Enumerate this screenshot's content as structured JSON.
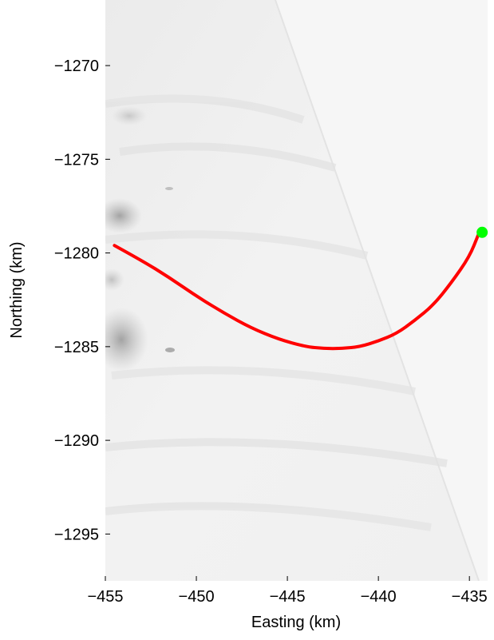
{
  "chart_data": {
    "type": "line",
    "xlabel": "Easting (km)",
    "ylabel": "Northing (km)",
    "xlim": [
      -455.0,
      -434.0
    ],
    "ylim": [
      -1297.5,
      -1266.5
    ],
    "xticks": [
      -455,
      -450,
      -445,
      -440,
      -435
    ],
    "xtick_labels": [
      "−455",
      "−450",
      "−445",
      "−440",
      "−435"
    ],
    "yticks": [
      -1270,
      -1275,
      -1280,
      -1285,
      -1290,
      -1295
    ],
    "ytick_labels": [
      "−1270",
      "−1275",
      "−1280",
      "−1285",
      "−1290",
      "−1295"
    ],
    "grid": false,
    "background": "grayscale satellite imagery of ice surface",
    "series": [
      {
        "color": "#ff0000",
        "x": [
          -454.5,
          -453.0,
          -451.5,
          -450.0,
          -448.5,
          -447.0,
          -445.5,
          -444.0,
          -443.0,
          -442.0,
          -441.0,
          -440.0,
          -439.0,
          -438.0,
          -437.0,
          -436.0,
          -435.0,
          -434.5
        ],
        "y": [
          -1279.6,
          -1280.4,
          -1281.3,
          -1282.3,
          -1283.2,
          -1284.0,
          -1284.6,
          -1285.0,
          -1285.1,
          -1285.1,
          -1285.0,
          -1284.7,
          -1284.3,
          -1283.6,
          -1282.8,
          -1281.6,
          -1280.2,
          -1279.0
        ]
      }
    ],
    "markers": [
      {
        "x": -434.3,
        "y": -1278.9,
        "color": "#00ff00",
        "shape": "circle"
      }
    ]
  }
}
